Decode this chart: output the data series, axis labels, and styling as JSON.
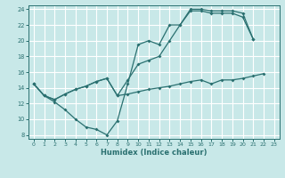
{
  "xlabel": "Humidex (Indice chaleur)",
  "bg_color": "#c8e8e8",
  "grid_color": "#ffffff",
  "line_color": "#2a7070",
  "xlim": [
    -0.5,
    23.5
  ],
  "ylim": [
    7.5,
    24.5
  ],
  "xticks": [
    0,
    1,
    2,
    3,
    4,
    5,
    6,
    7,
    8,
    9,
    10,
    11,
    12,
    13,
    14,
    15,
    16,
    17,
    18,
    19,
    20,
    21,
    22,
    23
  ],
  "yticks": [
    8,
    10,
    12,
    14,
    16,
    18,
    20,
    22,
    24
  ],
  "line1_x": [
    0,
    1,
    2,
    3,
    4,
    5,
    6,
    7,
    8,
    9,
    10,
    11,
    12,
    13,
    14,
    15,
    16,
    17,
    18,
    19,
    20,
    21,
    22,
    23
  ],
  "line1_y": [
    14.5,
    13.0,
    12.2,
    11.2,
    10.0,
    9.0,
    8.7,
    8.0,
    9.8,
    14.5,
    19.5,
    20.0,
    19.5,
    22.0,
    22.0,
    23.8,
    23.8,
    23.5,
    23.5,
    23.5,
    23.0,
    20.2,
    null,
    null
  ],
  "line2_x": [
    0,
    1,
    2,
    3,
    4,
    5,
    6,
    7,
    8,
    9,
    10,
    11,
    12,
    13,
    14,
    15,
    16,
    17,
    18,
    19,
    20,
    21,
    22,
    23
  ],
  "line2_y": [
    14.5,
    13.0,
    12.5,
    13.2,
    13.8,
    14.2,
    14.8,
    15.2,
    13.0,
    15.0,
    17.0,
    17.5,
    18.0,
    20.0,
    22.0,
    24.0,
    24.0,
    23.8,
    23.8,
    23.8,
    23.5,
    20.2,
    null,
    null
  ],
  "line3_x": [
    0,
    1,
    2,
    3,
    4,
    5,
    6,
    7,
    8,
    9,
    10,
    11,
    12,
    13,
    14,
    15,
    16,
    17,
    18,
    19,
    20,
    21,
    22,
    23
  ],
  "line3_y": [
    14.5,
    13.0,
    12.5,
    13.2,
    13.8,
    14.2,
    14.8,
    15.2,
    13.0,
    13.2,
    13.5,
    13.8,
    14.0,
    14.2,
    14.5,
    14.8,
    15.0,
    14.5,
    15.0,
    15.0,
    15.2,
    15.5,
    15.8,
    null
  ]
}
